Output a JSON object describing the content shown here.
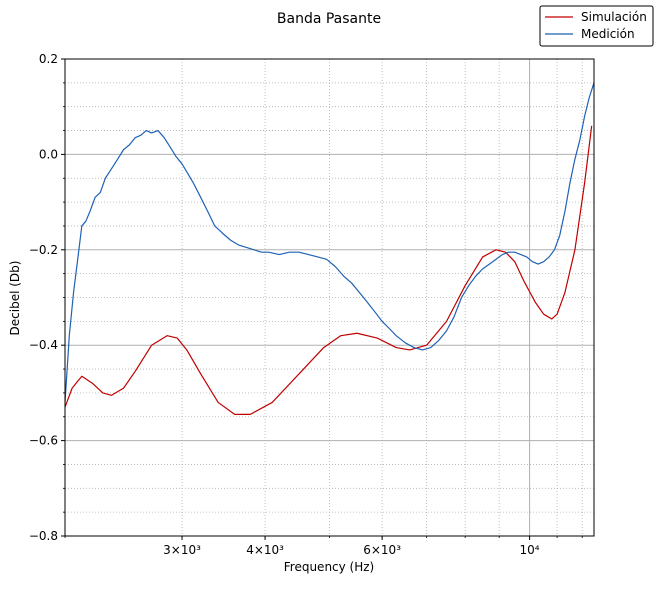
{
  "chart_data": {
    "type": "line",
    "title": "Banda Pasante",
    "xlabel": "Frequency (Hz)",
    "ylabel": "Decibel (Db)",
    "x_scale": "log",
    "xlim": [
      2000,
      12500
    ],
    "ylim": [
      -0.8,
      0.2
    ],
    "x_ticks": [
      {
        "value": 3000,
        "label": "3×10³"
      },
      {
        "value": 4000,
        "label": "4×10³"
      },
      {
        "value": 6000,
        "label": "6×10³"
      },
      {
        "value": 10000,
        "label": "10⁴"
      }
    ],
    "y_ticks": [
      {
        "value": 0.2,
        "label": "0.2"
      },
      {
        "value": 0.0,
        "label": "0.0"
      },
      {
        "value": -0.2,
        "label": "−0.2"
      },
      {
        "value": -0.4,
        "label": "−0.4"
      },
      {
        "value": -0.6,
        "label": "−0.6"
      },
      {
        "value": -0.8,
        "label": "−0.8"
      }
    ],
    "grid": "major solid, minor dotted",
    "legend_position": "top-right",
    "series": [
      {
        "name": "Simulación",
        "color": "#c00000",
        "x": [
          2000,
          2050,
          2120,
          2200,
          2280,
          2350,
          2450,
          2550,
          2700,
          2850,
          2950,
          3050,
          3200,
          3400,
          3600,
          3800,
          4100,
          4500,
          4900,
          5200,
          5500,
          5900,
          6300,
          6600,
          7000,
          7500,
          8000,
          8500,
          8900,
          9200,
          9500,
          9800,
          10200,
          10500,
          10800,
          11000,
          11300,
          11700,
          12100,
          12400
        ],
        "y": [
          -0.53,
          -0.49,
          -0.465,
          -0.48,
          -0.5,
          -0.505,
          -0.49,
          -0.455,
          -0.4,
          -0.38,
          -0.385,
          -0.41,
          -0.46,
          -0.52,
          -0.545,
          -0.545,
          -0.52,
          -0.46,
          -0.405,
          -0.38,
          -0.375,
          -0.385,
          -0.405,
          -0.41,
          -0.4,
          -0.35,
          -0.275,
          -0.215,
          -0.2,
          -0.205,
          -0.225,
          -0.265,
          -0.31,
          -0.335,
          -0.345,
          -0.335,
          -0.29,
          -0.2,
          -0.06,
          0.06
        ]
      },
      {
        "name": "Medición",
        "color": "#1e62b5",
        "x": [
          2000,
          2030,
          2060,
          2090,
          2120,
          2150,
          2180,
          2220,
          2260,
          2300,
          2350,
          2400,
          2450,
          2500,
          2550,
          2600,
          2650,
          2700,
          2760,
          2820,
          2880,
          2940,
          3000,
          3060,
          3120,
          3200,
          3280,
          3360,
          3450,
          3550,
          3650,
          3750,
          3850,
          3950,
          4050,
          4200,
          4350,
          4500,
          4650,
          4800,
          4950,
          5100,
          5250,
          5400,
          5550,
          5700,
          5850,
          6000,
          6150,
          6300,
          6500,
          6700,
          6900,
          7100,
          7300,
          7500,
          7700,
          7900,
          8100,
          8300,
          8500,
          8700,
          8900,
          9100,
          9300,
          9500,
          9700,
          9900,
          10100,
          10300,
          10500,
          10700,
          10900,
          11100,
          11300,
          11500,
          11700,
          11900,
          12100,
          12300,
          12500
        ],
        "y": [
          -0.52,
          -0.38,
          -0.29,
          -0.22,
          -0.15,
          -0.14,
          -0.12,
          -0.09,
          -0.08,
          -0.05,
          -0.03,
          -0.01,
          0.01,
          0.02,
          0.035,
          0.04,
          0.05,
          0.045,
          0.05,
          0.035,
          0.015,
          -0.005,
          -0.02,
          -0.04,
          -0.06,
          -0.09,
          -0.12,
          -0.15,
          -0.165,
          -0.18,
          -0.19,
          -0.195,
          -0.2,
          -0.205,
          -0.205,
          -0.21,
          -0.205,
          -0.205,
          -0.21,
          -0.215,
          -0.22,
          -0.235,
          -0.255,
          -0.27,
          -0.29,
          -0.31,
          -0.33,
          -0.35,
          -0.365,
          -0.38,
          -0.395,
          -0.405,
          -0.41,
          -0.405,
          -0.39,
          -0.37,
          -0.34,
          -0.3,
          -0.275,
          -0.255,
          -0.24,
          -0.23,
          -0.22,
          -0.21,
          -0.205,
          -0.205,
          -0.21,
          -0.215,
          -0.225,
          -0.23,
          -0.225,
          -0.215,
          -0.2,
          -0.17,
          -0.12,
          -0.06,
          -0.01,
          0.03,
          0.08,
          0.12,
          0.15
        ]
      }
    ]
  }
}
